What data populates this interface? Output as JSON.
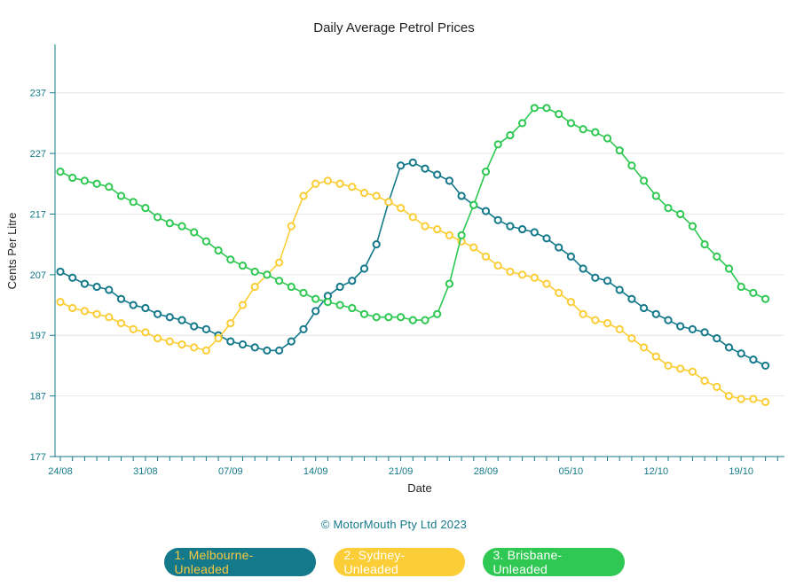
{
  "chart_data": {
    "type": "line",
    "title": "Daily Average Petrol Prices",
    "xlabel": "Date",
    "ylabel": "Cents Per Litre",
    "ylim": [
      177,
      245
    ],
    "yticks": [
      177,
      187,
      197,
      207,
      217,
      227,
      237
    ],
    "xtick_labels": [
      "24/08",
      "31/08",
      "07/09",
      "14/09",
      "21/09",
      "28/09",
      "05/10",
      "12/10",
      "19/10"
    ],
    "start_date": "24/08",
    "grid": "horizontal",
    "legend_position": "bottom",
    "series": [
      {
        "name": "1. Melbourne-Unleaded",
        "color": "#14798a",
        "values": [
          207.5,
          206.5,
          205.5,
          205,
          204.5,
          203,
          202,
          201.5,
          200.5,
          200,
          199.5,
          198.5,
          198,
          197,
          196,
          195.5,
          195,
          194.5,
          194.5,
          196,
          198,
          201,
          203.5,
          205,
          206,
          208,
          212,
          219,
          225,
          225.5,
          224.5,
          223.5,
          222.5,
          220,
          218.5,
          217.5,
          216,
          215,
          214.5,
          214,
          213,
          211.5,
          210,
          208,
          206.5,
          206,
          204.5,
          203,
          201.5,
          200.5,
          199.5,
          198.5,
          198,
          197.5,
          196.5,
          195,
          194,
          193,
          192
        ]
      },
      {
        "name": "2. Sydney-Unleaded",
        "color": "#fbcd36",
        "values": [
          202.5,
          201.5,
          201,
          200.5,
          200,
          199,
          198,
          197.5,
          196.5,
          196,
          195.5,
          195,
          194.5,
          196.5,
          199,
          202,
          205,
          207,
          209,
          215,
          220,
          222,
          222.5,
          222,
          221.5,
          220.5,
          220,
          219,
          218,
          216.5,
          215,
          214.5,
          213.5,
          212.5,
          211.5,
          210,
          208.5,
          207.5,
          207,
          206.5,
          205.5,
          204,
          202.5,
          200.5,
          199.5,
          199,
          198,
          196.5,
          195,
          193.5,
          192,
          191.5,
          191,
          189.5,
          188.5,
          187,
          186.5,
          186.5,
          186
        ]
      },
      {
        "name": "3. Brisbane-Unleaded",
        "color": "#2fc852",
        "values": [
          224,
          223,
          222.5,
          222,
          221.5,
          220,
          219,
          218,
          216.5,
          215.5,
          215,
          214,
          212.5,
          211,
          209.5,
          208.5,
          207.5,
          207,
          206,
          205,
          204,
          203,
          202.5,
          202,
          201.5,
          200.5,
          200,
          200,
          200,
          199.5,
          199.5,
          200.5,
          205.5,
          213.5,
          218.5,
          224,
          228.5,
          230,
          232,
          234.5,
          234.5,
          233.5,
          232,
          231,
          230.5,
          229.5,
          227.5,
          225,
          222.5,
          220,
          218,
          217,
          215,
          212,
          210,
          208,
          205,
          204,
          203
        ]
      }
    ]
  },
  "credit": "© MotorMouth Pty Ltd 2023",
  "legend": {
    "melbourne": "1. Melbourne-Unleaded",
    "sydney": "2. Sydney-Unleaded",
    "brisbane": "3. Brisbane-Unleaded"
  }
}
